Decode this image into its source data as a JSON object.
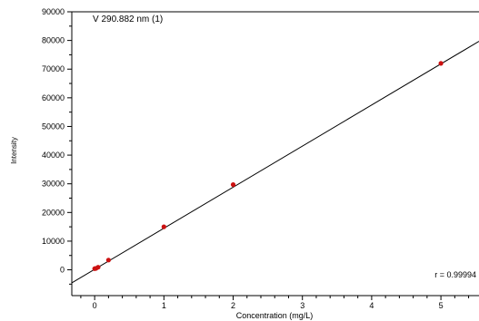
{
  "chart_data": {
    "type": "scatter",
    "title": "V 290.882 nm (1)",
    "xlabel": "Concentration (mg/L)",
    "ylabel": "Intensity",
    "annotation": "r = 0.99994",
    "xlim": [
      -0.33,
      5.55
    ],
    "ylim": [
      -9000,
      90000
    ],
    "x_ticks": [
      0,
      1,
      2,
      3,
      4,
      5
    ],
    "y_ticks": [
      0,
      10000,
      20000,
      30000,
      40000,
      50000,
      60000,
      70000,
      80000,
      90000
    ],
    "grid": false,
    "points": [
      {
        "x": 0,
        "y": 400
      },
      {
        "x": 0.02,
        "y": 500
      },
      {
        "x": 0.05,
        "y": 900
      },
      {
        "x": 0.2,
        "y": 3400
      },
      {
        "x": 1,
        "y": 15000
      },
      {
        "x": 2,
        "y": 29700
      },
      {
        "x": 5,
        "y": 72000
      }
    ],
    "fit_line": {
      "slope": 14330,
      "intercept": 170
    },
    "colors": {
      "points": "#cc1111",
      "line": "#000000",
      "axes": "#000000"
    }
  }
}
